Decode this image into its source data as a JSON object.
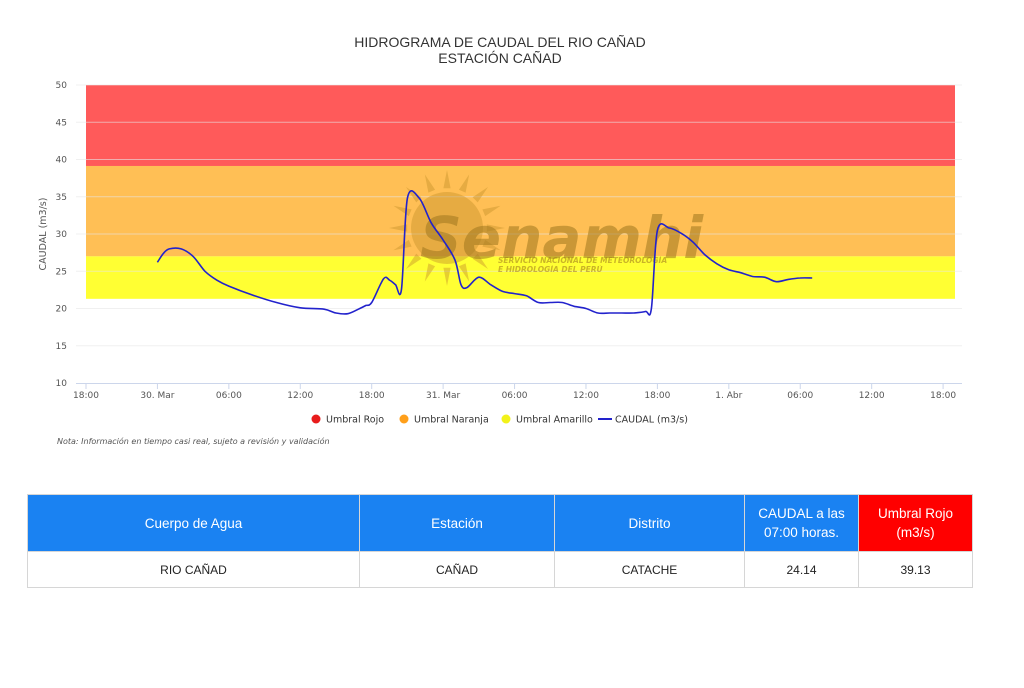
{
  "chart_data": {
    "type": "line",
    "title": "HIDROGRAMA DE CAUDAL DEL RIO CAÑAD",
    "subtitle": "ESTACIÓN CAÑAD",
    "ylabel": "CAUDAL (m3/s)",
    "xlabel": "",
    "ylim": [
      10,
      50
    ],
    "yticks": [
      10,
      15,
      20,
      25,
      30,
      35,
      40,
      45,
      50
    ],
    "xlim_hours": [
      -6,
      54
    ],
    "x_origin": "30. Mar 00:00",
    "xticks": [
      {
        "h": -6,
        "label": "18:00"
      },
      {
        "h": 0,
        "label": "30. Mar"
      },
      {
        "h": 6,
        "label": "06:00"
      },
      {
        "h": 12,
        "label": "12:00"
      },
      {
        "h": 18,
        "label": "18:00"
      },
      {
        "h": 24,
        "label": "31. Mar"
      },
      {
        "h": 30,
        "label": "06:00"
      },
      {
        "h": 36,
        "label": "12:00"
      },
      {
        "h": 42,
        "label": "18:00"
      },
      {
        "h": 48,
        "label": "1. Abr"
      },
      {
        "h": 54,
        "label": "06:00"
      },
      {
        "h": 60,
        "label": "12:00"
      },
      {
        "h": 66,
        "label": "18:00"
      }
    ],
    "bands": [
      {
        "name": "Umbral Rojo",
        "from": 39.13,
        "to": 50,
        "color": "#ff5a5a"
      },
      {
        "name": "Umbral Naranja",
        "from": 27,
        "to": 39.13,
        "color": "#ffbf55"
      },
      {
        "name": "Umbral Amarillo",
        "from": 21.3,
        "to": 27,
        "color": "#ffff33"
      }
    ],
    "series": [
      {
        "name": "CAUDAL (m3/s)",
        "color": "#2222cc",
        "x_hours": [
          0,
          0.5,
          1,
          2,
          3,
          4,
          5,
          6,
          8,
          10,
          12,
          14,
          15,
          16,
          17,
          17.5,
          18,
          19,
          19.5,
          20,
          20.5,
          21,
          22,
          23,
          24,
          25,
          25.5,
          26,
          27,
          28,
          29,
          30,
          31,
          32,
          33,
          34,
          35,
          36,
          37,
          38,
          39,
          40,
          41,
          41.5,
          42,
          43,
          44,
          45,
          46,
          47,
          48,
          49,
          50,
          51,
          52,
          53,
          54,
          55
        ],
        "values": [
          26.2,
          27.4,
          28.0,
          28.0,
          27.0,
          25.0,
          23.8,
          23.0,
          21.8,
          20.8,
          20.1,
          19.9,
          19.4,
          19.3,
          20.0,
          20.4,
          20.8,
          24.0,
          23.8,
          23.2,
          22.6,
          34.8,
          34.8,
          31.5,
          29.2,
          26.5,
          23.2,
          22.8,
          24.2,
          23.2,
          22.3,
          22.0,
          21.7,
          20.8,
          20.8,
          20.8,
          20.3,
          20.0,
          19.4,
          19.4,
          19.4,
          19.4,
          19.6,
          20.0,
          30.5,
          30.8,
          30.1,
          28.9,
          27.2,
          26.0,
          25.2,
          24.8,
          24.3,
          24.2,
          23.6,
          23.9,
          24.1,
          24.1
        ]
      }
    ],
    "legend": [
      "Umbral Rojo",
      "Umbral Naranja",
      "Umbral Amarillo",
      "CAUDAL (m3/s)"
    ],
    "legend_colors": [
      "#e81c1c",
      "#ff9f1a",
      "#f2f21a",
      "#2222cc"
    ],
    "legend_position": "bottom",
    "grid": true
  },
  "note": "Nota: Información en tiempo casi real, sujeto a revisión y validación",
  "watermark": {
    "brand": "Senamhi",
    "tagline_1": "SERVICIO NACIONAL DE METEOROLOGÍA",
    "tagline_2": "E HIDROLOGÍA DEL PERÚ"
  },
  "table": {
    "headers": [
      "Cuerpo de Agua",
      "Estación",
      "Distrito",
      "CAUDAL a las 07:00 horas.",
      "Umbral Rojo (m3/s)"
    ],
    "header_colors": [
      "#1a82f2",
      "#1a82f2",
      "#1a82f2",
      "#1a82f2",
      "#ff0000"
    ],
    "row": [
      "RIO CAÑAD",
      "CAÑAD",
      "CATACHE",
      "24.14",
      "39.13"
    ]
  }
}
